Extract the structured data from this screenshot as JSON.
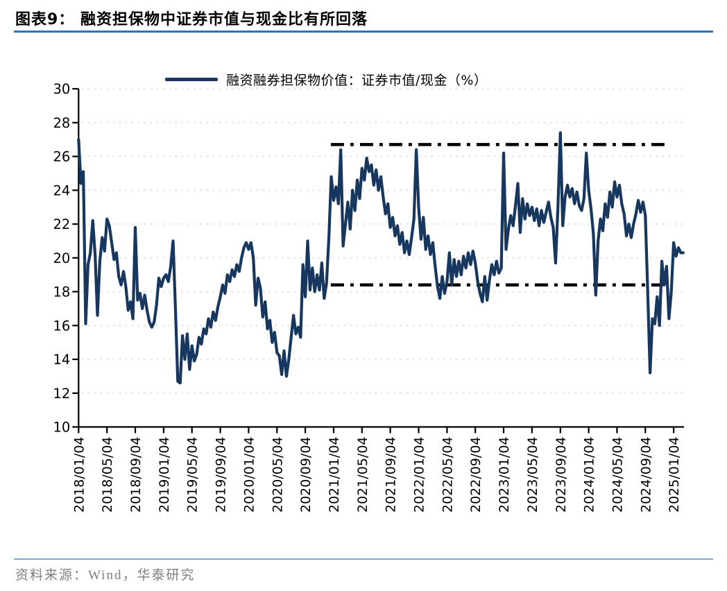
{
  "header": {
    "title": "图表9：  融资担保物中证券市值与现金比有所回落"
  },
  "footer": {
    "source": "资料来源：Wind，华泰研究"
  },
  "style": {
    "title_rule_color": "#2E74B5",
    "footer_rule_color": "#7FA8D4",
    "source_text_color": "#7F7F7F",
    "axis_color": "#000000",
    "grid_color": "#EBEBEB",
    "ref_line_color": "#000000",
    "series_color": "#17375E"
  },
  "chart_data": {
    "type": "line",
    "title": "",
    "xlabel": "",
    "ylabel": "",
    "legend_position": "top",
    "grid": "dotted-horizontal",
    "ylim": [
      10,
      30
    ],
    "y_ticks": [
      10,
      12,
      14,
      16,
      18,
      20,
      22,
      24,
      26,
      28,
      30
    ],
    "x_tick_labels": [
      "2018/01/04",
      "2018/05/04",
      "2018/09/04",
      "2019/01/04",
      "2019/05/04",
      "2019/09/04",
      "2020/01/04",
      "2020/05/04",
      "2020/09/04",
      "2021/01/04",
      "2021/05/04",
      "2021/09/04",
      "2022/01/04",
      "2022/05/04",
      "2022/09/04",
      "2023/01/04",
      "2023/05/04",
      "2023/09/04",
      "2024/01/04",
      "2024/05/04",
      "2024/09/04",
      "2025/01/04"
    ],
    "x_tick_interval_months": 4,
    "points_per_month": 3,
    "start_label": "2018/01/04",
    "ref_lines": [
      {
        "name": "upper-band",
        "value": 26.7,
        "style": "dashdot"
      },
      {
        "name": "lower-band",
        "value": 18.4,
        "style": "dashdot"
      }
    ],
    "series": [
      {
        "name": "融资融券担保物价值：证券市值/现金（%）",
        "color": "#17375E",
        "values": [
          27.0,
          24.4,
          25.1,
          16.1,
          19.6,
          20.3,
          22.2,
          20.2,
          16.6,
          19.8,
          21.2,
          20.4,
          22.3,
          21.9,
          20.9,
          19.9,
          20.3,
          18.9,
          18.4,
          19.2,
          18.3,
          16.9,
          17.4,
          16.4,
          21.8,
          17.5,
          17.9,
          17.0,
          17.8,
          16.9,
          16.2,
          15.9,
          16.2,
          17.2,
          18.8,
          18.3,
          18.8,
          19.0,
          18.6,
          19.5,
          21.0,
          17.0,
          12.7,
          12.6,
          15.4,
          14.0,
          15.5,
          13.4,
          14.8,
          13.9,
          14.3,
          15.3,
          14.9,
          15.8,
          15.5,
          16.4,
          15.9,
          16.8,
          16.3,
          17.1,
          17.7,
          18.4,
          17.9,
          19.0,
          18.6,
          19.3,
          18.9,
          19.6,
          19.2,
          20.0,
          20.6,
          20.9,
          20.5,
          20.9,
          20.0,
          17.2,
          18.8,
          18.2,
          16.5,
          17.4,
          15.8,
          16.3,
          15.0,
          15.6,
          14.4,
          14.2,
          13.1,
          14.5,
          13.0,
          14.0,
          15.3,
          16.6,
          15.5,
          15.9,
          15.3,
          19.6,
          17.7,
          21.0,
          18.1,
          19.4,
          18.0,
          19.0,
          18.1,
          19.7,
          17.6,
          18.5,
          21.2,
          24.8,
          23.4,
          24.2,
          23.2,
          26.4,
          20.7,
          22.0,
          23.3,
          21.7,
          24.0,
          22.8,
          24.6,
          23.5,
          25.3,
          24.6,
          25.9,
          25.1,
          25.5,
          24.3,
          25.2,
          24.0,
          24.8,
          23.6,
          22.6,
          23.2,
          21.8,
          22.4,
          21.3,
          21.9,
          20.8,
          21.5,
          20.3,
          21.0,
          20.2,
          21.2,
          22.3,
          26.4,
          23.0,
          21.1,
          22.4,
          20.5,
          21.3,
          20.2,
          20.9,
          19.5,
          18.3,
          17.6,
          18.9,
          17.9,
          18.6,
          20.3,
          18.4,
          19.9,
          18.9,
          19.8,
          19.0,
          20.1,
          19.4,
          20.3,
          19.6,
          20.4,
          19.7,
          18.6,
          17.9,
          17.4,
          18.9,
          17.5,
          18.7,
          19.6,
          19.0,
          19.8,
          19.1,
          19.4,
          26.2,
          20.5,
          21.7,
          22.5,
          21.9,
          23.1,
          24.4,
          21.5,
          23.5,
          22.3,
          23.2,
          22.5,
          23.0,
          22.2,
          22.9,
          21.9,
          22.8,
          22.1,
          22.7,
          23.3,
          22.4,
          21.8,
          19.7,
          23.0,
          27.4,
          21.9,
          23.6,
          24.3,
          23.6,
          24.1,
          23.2,
          23.9,
          23.1,
          22.8,
          23.5,
          26.2,
          24.0,
          22.9,
          21.4,
          17.8,
          21.0,
          22.3,
          21.6,
          23.2,
          22.4,
          23.9,
          23.0,
          24.5,
          23.6,
          24.3,
          23.2,
          22.6,
          21.3,
          22.0,
          21.2,
          22.0,
          22.6,
          23.4,
          22.7,
          23.3,
          22.5,
          18.0,
          13.2,
          16.4,
          16.1,
          17.7,
          16.0,
          19.8,
          18.4,
          19.5,
          16.4,
          18.0,
          20.9,
          20.1,
          20.6,
          20.3,
          20.3
        ]
      }
    ]
  }
}
